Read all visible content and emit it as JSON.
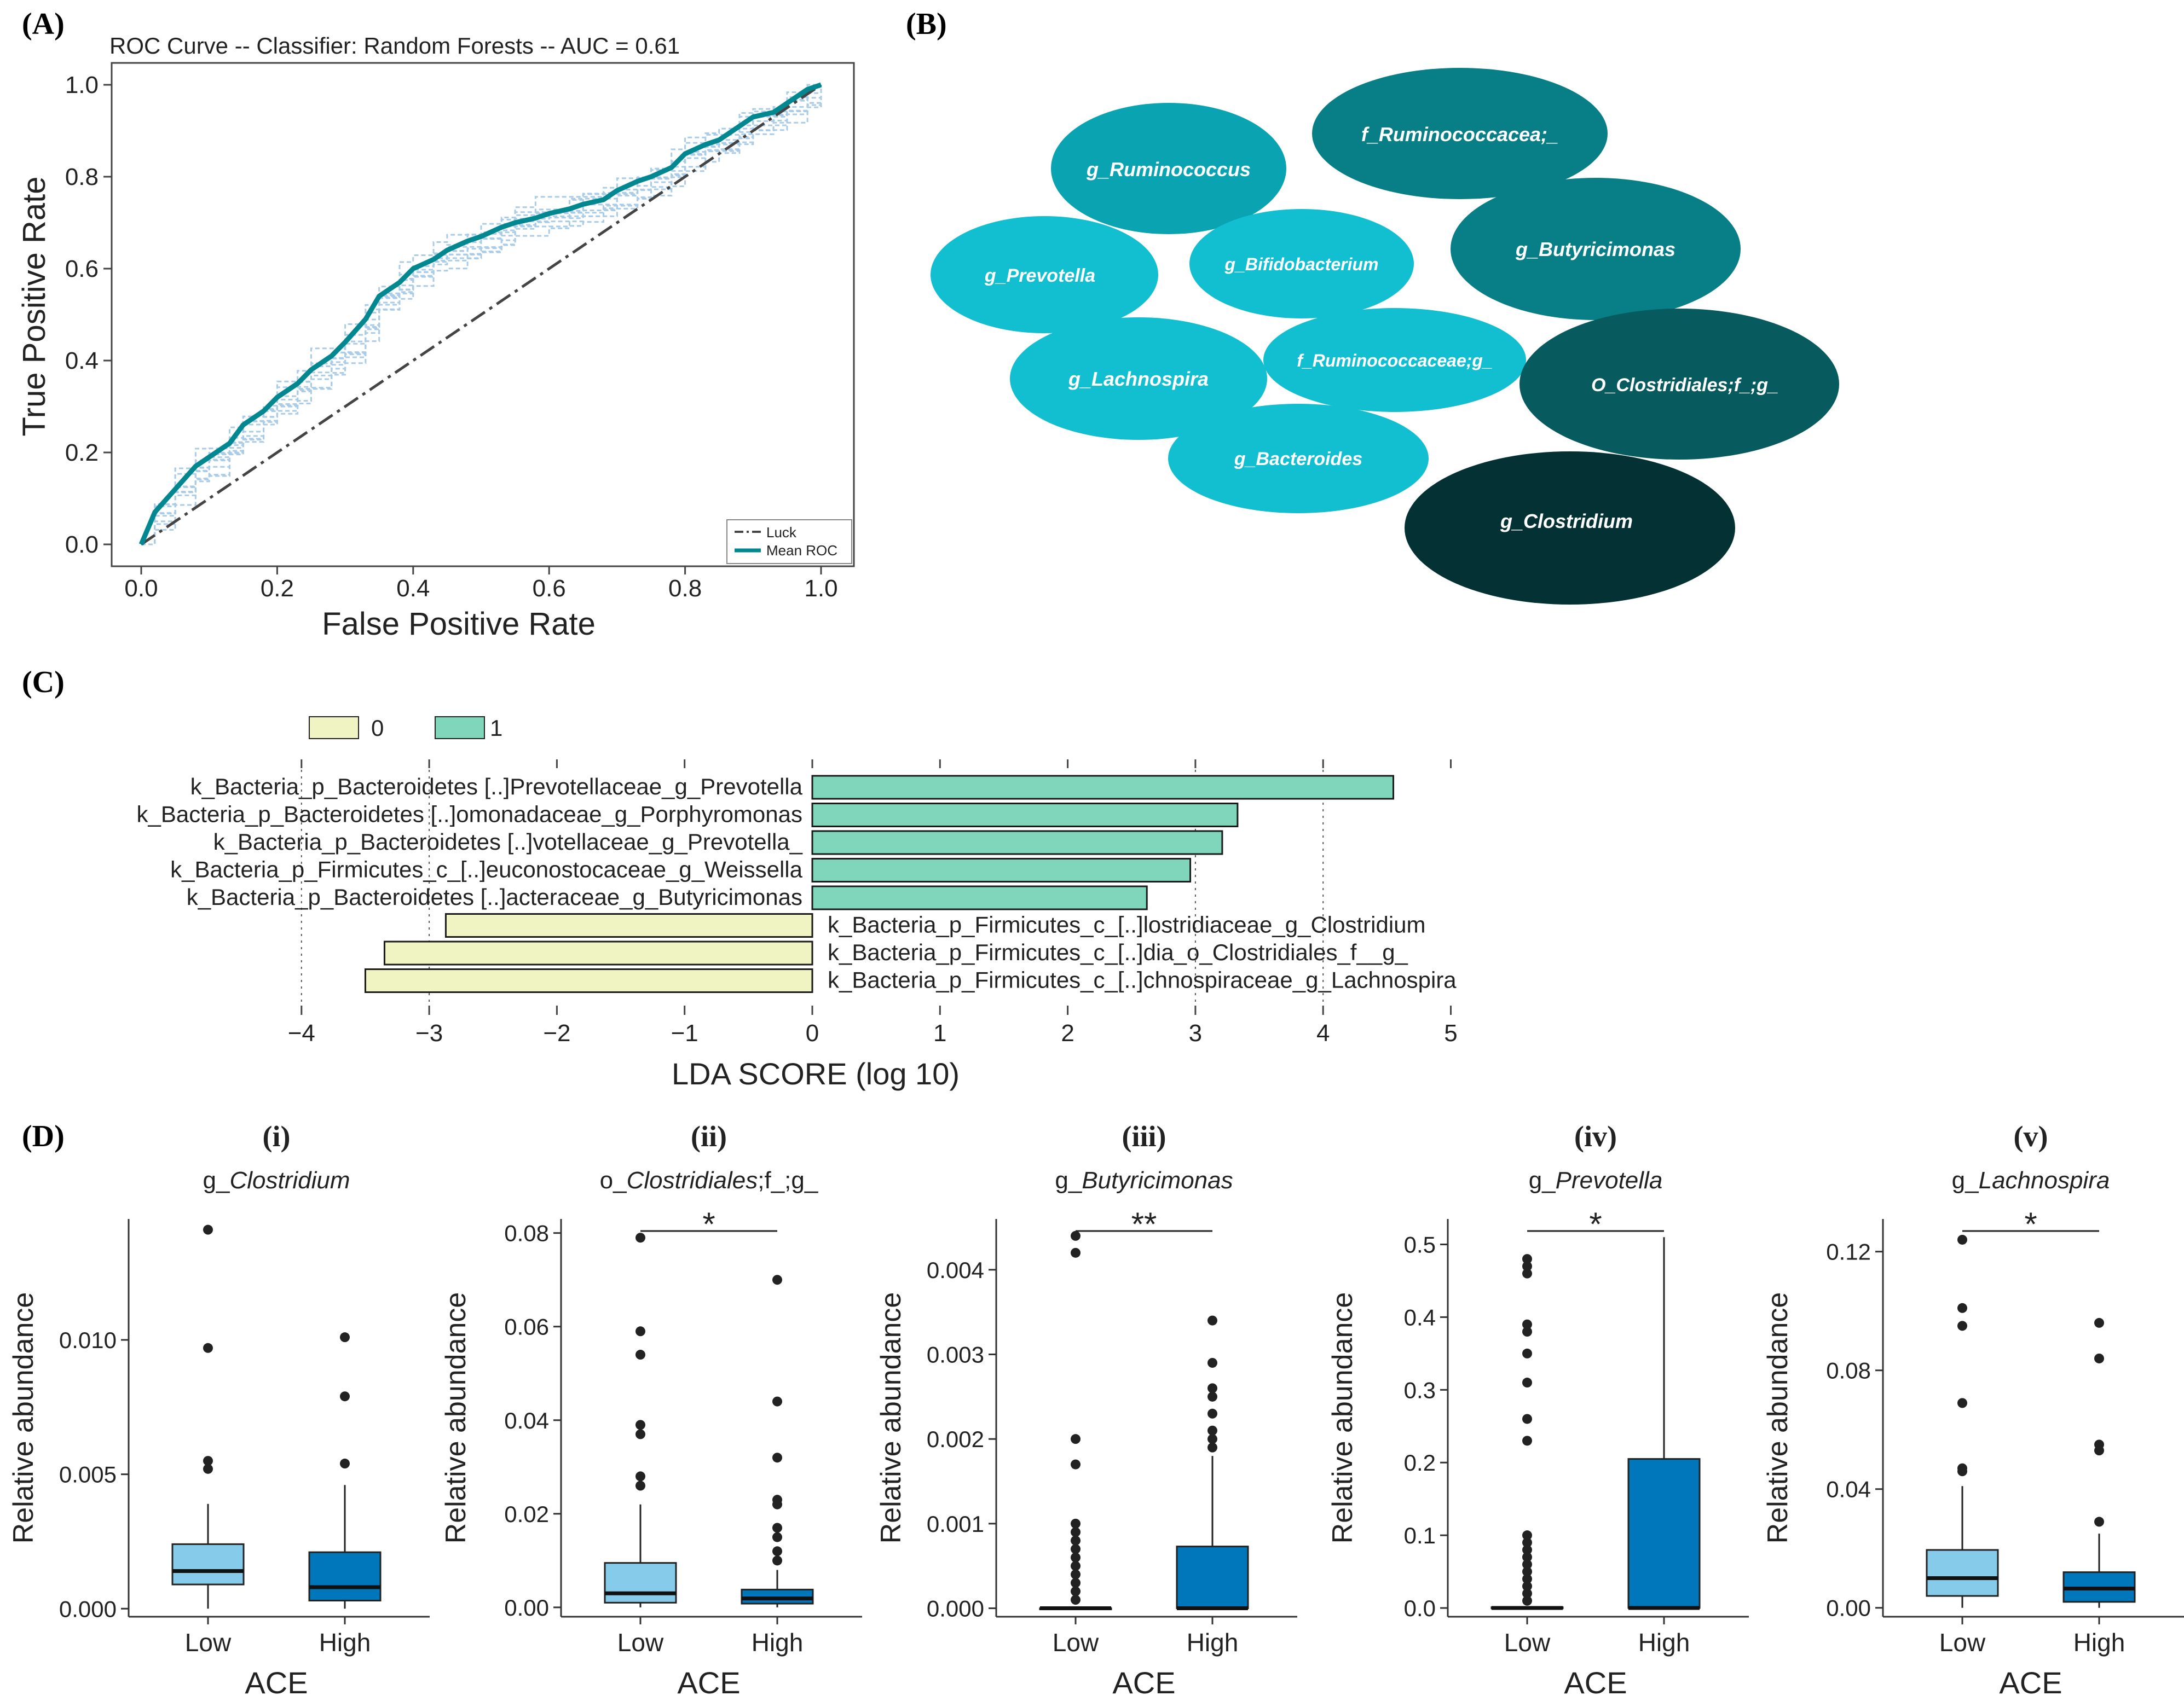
{
  "panels": {
    "A": "(A)",
    "B": "(B)",
    "C": "(C)",
    "D": "(D)",
    "subpanels": [
      "(i)",
      "(ii)",
      "(iii)",
      "(iv)",
      "(v)"
    ]
  },
  "colors": {
    "teal": "#00878f",
    "roc_fold": "#a9cce8",
    "luck": "#444444",
    "lda_pos": "#7fd6bb",
    "lda_neg": "#f0f4c3",
    "box_low": "#86ccea",
    "box_high": "#0077bb",
    "bubble_light": "#12bfd1",
    "bubble_mid": "#0aa3b2",
    "bubble_dark": "#087f86",
    "bubble_darker": "#075a5e",
    "bubble_darkest": "#043234"
  },
  "chart_data": [
    {
      "id": "roc",
      "type": "line",
      "title": "ROC Curve -- Classifier: Random Forests -- AUC = 0.61",
      "xlabel": "False Positive Rate",
      "ylabel": "True Positive Rate",
      "xlim": [
        0,
        1
      ],
      "ylim": [
        0,
        1
      ],
      "xticks": [
        "0.0",
        "0.2",
        "0.4",
        "0.6",
        "0.8",
        "1.0"
      ],
      "yticks": [
        "0.0",
        "0.2",
        "0.4",
        "0.6",
        "0.8",
        "1.0"
      ],
      "legend": [
        "Luck",
        "Mean ROC"
      ],
      "legend_position": "bottom-right",
      "series": [
        {
          "name": "Luck",
          "x": [
            0,
            1
          ],
          "y": [
            0,
            1
          ]
        },
        {
          "name": "Mean ROC",
          "x": [
            0,
            0.02,
            0.05,
            0.08,
            0.1,
            0.13,
            0.15,
            0.18,
            0.2,
            0.23,
            0.25,
            0.28,
            0.3,
            0.33,
            0.35,
            0.38,
            0.4,
            0.43,
            0.45,
            0.48,
            0.5,
            0.53,
            0.55,
            0.58,
            0.6,
            0.63,
            0.65,
            0.68,
            0.7,
            0.73,
            0.75,
            0.78,
            0.8,
            0.83,
            0.85,
            0.88,
            0.9,
            0.93,
            0.95,
            0.98,
            1.0
          ],
          "y": [
            0,
            0.07,
            0.12,
            0.17,
            0.19,
            0.22,
            0.26,
            0.29,
            0.32,
            0.35,
            0.38,
            0.41,
            0.44,
            0.49,
            0.54,
            0.57,
            0.6,
            0.62,
            0.64,
            0.66,
            0.67,
            0.69,
            0.7,
            0.71,
            0.72,
            0.73,
            0.74,
            0.75,
            0.77,
            0.79,
            0.8,
            0.82,
            0.85,
            0.87,
            0.88,
            0.91,
            0.93,
            0.94,
            0.96,
            0.99,
            1.0
          ]
        }
      ]
    },
    {
      "id": "lda",
      "type": "bar",
      "orientation": "horizontal",
      "xlabel": "LDA SCORE (log 10)",
      "xlim": [
        -4,
        5
      ],
      "xticks": [
        "−4",
        "−3",
        "−2",
        "−1",
        "0",
        "1",
        "2",
        "3",
        "4",
        "5"
      ],
      "legend": [
        "0",
        "1"
      ],
      "legend_position": "top-left",
      "bars": [
        {
          "label": "k_Bacteria_p_Bacteroidetes [..]Prevotellaceae_g_Prevotella",
          "value": 4.55,
          "group": "1"
        },
        {
          "label": "k_Bacteria_p_Bacteroidetes [..]omonadaceae_g_Porphyromonas",
          "value": 3.33,
          "group": "1"
        },
        {
          "label": "k_Bacteria_p_Bacteroidetes [..]votellaceae_g_Prevotella_",
          "value": 3.21,
          "group": "1"
        },
        {
          "label": "k_Bacteria_p_Firmicutes_c_[..]euconostocaceae_g_Weissella",
          "value": 2.96,
          "group": "1"
        },
        {
          "label": "k_Bacteria_p_Bacteroidetes [..]acteraceae_g_Butyricimonas",
          "value": 2.62,
          "group": "1"
        },
        {
          "label": "k_Bacteria_p_Firmicutes_c_[..]lostridiaceae_g_Clostridium",
          "value": -2.87,
          "group": "0"
        },
        {
          "label": "k_Bacteria_p_Firmicutes_c_[..]dia_o_Clostridiales_f__g_",
          "value": -3.35,
          "group": "0"
        },
        {
          "label": "k_Bacteria_p_Firmicutes_c_[..]chnospiraceae_g_Lachnospira",
          "value": -3.5,
          "group": "0"
        }
      ]
    },
    {
      "id": "box-i",
      "type": "box",
      "panel": "(i)",
      "title_prefix": "g_",
      "title_italic": "Clostridium",
      "xlabel": "ACE",
      "ylabel": "Relative abundance",
      "categories": [
        "Low",
        "High"
      ],
      "ylim": [
        -0.0003,
        0.0145
      ],
      "yticks": [
        0,
        0.005,
        0.01
      ],
      "yticklabels": [
        "0.000",
        "0.005",
        "0.010"
      ],
      "boxes": [
        {
          "name": "Low",
          "q1": 0.0009,
          "median": 0.0014,
          "q3": 0.0024,
          "whisker_low": 0.0,
          "whisker_high": 0.0039,
          "outliers": [
            0.0052,
            0.0055,
            0.0097,
            0.0141
          ]
        },
        {
          "name": "High",
          "q1": 0.0003,
          "median": 0.0008,
          "q3": 0.0021,
          "whisker_low": 0.0,
          "whisker_high": 0.0046,
          "outliers": [
            0.0054,
            0.0079,
            0.0101
          ]
        }
      ],
      "significance": ""
    },
    {
      "id": "box-ii",
      "type": "box",
      "panel": "(ii)",
      "title_prefix": "o_",
      "title_italic": "Clostridiales",
      "title_suffix": ";f_;g_",
      "xlabel": "ACE",
      "ylabel": "Relative abundance",
      "categories": [
        "Low",
        "High"
      ],
      "ylim": [
        -0.002,
        0.083
      ],
      "yticks": [
        0,
        0.02,
        0.04,
        0.06,
        0.08
      ],
      "yticklabels": [
        "0.00",
        "0.02",
        "0.04",
        "0.06",
        "0.08"
      ],
      "boxes": [
        {
          "name": "Low",
          "q1": 0.001,
          "median": 0.003,
          "q3": 0.0095,
          "whisker_low": 0.0,
          "whisker_high": 0.022,
          "outliers": [
            0.026,
            0.028,
            0.037,
            0.039,
            0.054,
            0.059,
            0.079
          ]
        },
        {
          "name": "High",
          "q1": 0.0008,
          "median": 0.0019,
          "q3": 0.0038,
          "whisker_low": 0.0,
          "whisker_high": 0.008,
          "outliers": [
            0.01,
            0.012,
            0.015,
            0.017,
            0.022,
            0.023,
            0.032,
            0.044,
            0.07
          ]
        }
      ],
      "significance": "*"
    },
    {
      "id": "box-iii",
      "type": "box",
      "panel": "(iii)",
      "title_prefix": "g_",
      "title_italic": "Butyricimonas",
      "xlabel": "ACE",
      "ylabel": "Relative abundance",
      "categories": [
        "Low",
        "High"
      ],
      "ylim": [
        -0.0001,
        0.0046
      ],
      "yticks": [
        0,
        0.001,
        0.002,
        0.003,
        0.004
      ],
      "yticklabels": [
        "0.000",
        "0.001",
        "0.002",
        "0.003",
        "0.004"
      ],
      "boxes": [
        {
          "name": "Low",
          "q1": 0.0,
          "median": 0.0,
          "q3": 0.0,
          "whisker_low": 0.0,
          "whisker_high": 0.0,
          "outliers": [
            0.0001,
            0.0002,
            0.0003,
            0.0004,
            0.0005,
            0.0006,
            0.0007,
            0.0008,
            0.0009,
            0.001,
            0.0017,
            0.002,
            0.0042,
            0.0044
          ]
        },
        {
          "name": "High",
          "q1": 0.0,
          "median": 0.0,
          "q3": 0.00073,
          "whisker_low": 0.0,
          "whisker_high": 0.0018,
          "outliers": [
            0.0019,
            0.002,
            0.0021,
            0.0023,
            0.0025,
            0.0026,
            0.0029,
            0.0034
          ]
        }
      ],
      "significance": "**"
    },
    {
      "id": "box-iv",
      "type": "box",
      "panel": "(iv)",
      "title_prefix": "g_",
      "title_italic": "Prevotella",
      "xlabel": "ACE",
      "ylabel": "Relative abundance",
      "categories": [
        "Low",
        "High"
      ],
      "ylim": [
        -0.012,
        0.535
      ],
      "yticks": [
        0,
        0.1,
        0.2,
        0.3,
        0.4,
        0.5
      ],
      "yticklabels": [
        "0.0",
        "0.1",
        "0.2",
        "0.3",
        "0.4",
        "0.5"
      ],
      "boxes": [
        {
          "name": "Low",
          "q1": 0.0,
          "median": 0.0,
          "q3": 0.001,
          "whisker_low": 0.0,
          "whisker_high": 0.002,
          "outliers": [
            0.01,
            0.02,
            0.03,
            0.04,
            0.05,
            0.06,
            0.07,
            0.08,
            0.09,
            0.1,
            0.23,
            0.26,
            0.31,
            0.35,
            0.38,
            0.39,
            0.46,
            0.47,
            0.48
          ]
        },
        {
          "name": "High",
          "q1": 0.0,
          "median": 0.0,
          "q3": 0.205,
          "whisker_low": 0.0,
          "whisker_high": 0.51,
          "outliers": []
        }
      ],
      "significance": "*"
    },
    {
      "id": "box-v",
      "type": "box",
      "panel": "(v)",
      "title_prefix": "g_",
      "title_italic": "Lachnospira",
      "xlabel": "ACE",
      "ylabel": "Relative abundance",
      "categories": [
        "Low",
        "High"
      ],
      "ylim": [
        -0.003,
        0.131
      ],
      "yticks": [
        0,
        0.04,
        0.08,
        0.12
      ],
      "yticklabels": [
        "0.00",
        "0.04",
        "0.08",
        "0.12"
      ],
      "boxes": [
        {
          "name": "Low",
          "q1": 0.004,
          "median": 0.01,
          "q3": 0.0195,
          "whisker_low": 0.0,
          "whisker_high": 0.041,
          "outliers": [
            0.046,
            0.047,
            0.069,
            0.095,
            0.101,
            0.124
          ]
        },
        {
          "name": "High",
          "q1": 0.002,
          "median": 0.0065,
          "q3": 0.012,
          "whisker_low": 0.0,
          "whisker_high": 0.025,
          "outliers": [
            0.029,
            0.053,
            0.055,
            0.084,
            0.096
          ]
        }
      ],
      "significance": "*"
    }
  ],
  "bubbles": [
    {
      "label": "g_Ruminococcus",
      "shade": "bubble_mid"
    },
    {
      "label": "f_Ruminococcacea;_",
      "shade": "bubble_dark"
    },
    {
      "label": "g_Prevotella",
      "shade": "bubble_light"
    },
    {
      "label": "g_Bifidobacterium",
      "shade": "bubble_light"
    },
    {
      "label": "g_Butyricimonas",
      "shade": "bubble_dark"
    },
    {
      "label": "g_Lachnospira",
      "shade": "bubble_light"
    },
    {
      "label": "f_Ruminococcaceae;g_",
      "shade": "bubble_light"
    },
    {
      "label": "O_Clostridiales;f_;g_",
      "shade": "bubble_darker"
    },
    {
      "label": "g_Bacteroides",
      "shade": "bubble_light"
    },
    {
      "label": "g_Clostridium",
      "shade": "bubble_darkest"
    }
  ]
}
